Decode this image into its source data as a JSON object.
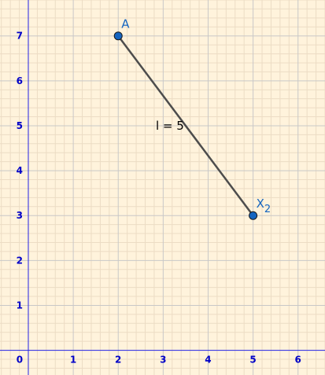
{
  "chart_data": {
    "type": "geometry",
    "x_range": [
      -0.63,
      6.6
    ],
    "y_range": [
      -0.55,
      7.8
    ],
    "x_ticks": [
      "0",
      "1",
      "2",
      "3",
      "4",
      "5",
      "6"
    ],
    "y_ticks": [
      "1",
      "2",
      "3",
      "4",
      "5",
      "6",
      "7"
    ],
    "grid": true,
    "points": [
      {
        "name": "A",
        "x": 2,
        "y": 7
      },
      {
        "name": "X",
        "subscript": "2",
        "x": 5,
        "y": 3
      }
    ],
    "segment": {
      "from": "A",
      "to": "X",
      "label": "l = 5"
    }
  },
  "colors": {
    "background": "#fff3dc",
    "minor_grid": "#ecdcc4",
    "major_grid": "#c8c8c8",
    "axis": "#2323e6",
    "tick_label": "#0000c8",
    "segment": "#4d4d4d",
    "point_fill": "#1565c0",
    "point_stroke": "#1a1a1a",
    "point_label": "#1565c0",
    "segment_label": "#000000"
  }
}
